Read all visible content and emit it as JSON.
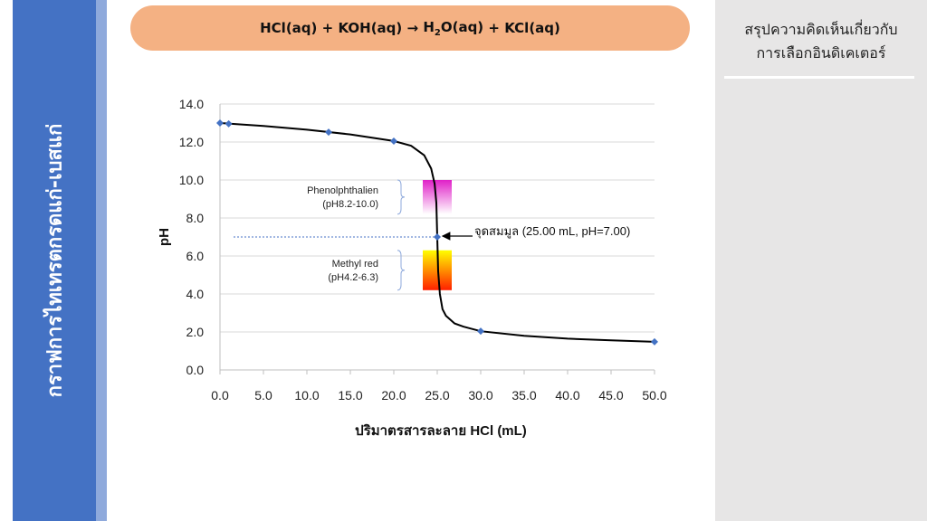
{
  "side_title": "กราฟการไทเทรตกรดแก่-เบสแก่",
  "equation": {
    "reactant1": "HCl(aq)",
    "plus1": "+",
    "reactant2": "KOH(aq)",
    "arrow": "→",
    "product1_pre": "H",
    "product1_sub": "2",
    "product1_post": "O(aq)",
    "plus2": "+",
    "product2": "KCl(aq)"
  },
  "right_panel": {
    "title_line1": "สรุปความคิดเห็นเกี่ยวกับ",
    "title_line2": "การเลือกอินดิเคเตอร์"
  },
  "chart_data": {
    "type": "line",
    "xlabel": "ปริมาตรสารละลาย HCl (mL)",
    "ylabel": "pH",
    "xlim": [
      0,
      50
    ],
    "ylim": [
      0,
      14
    ],
    "x_ticks": [
      "0.0",
      "5.0",
      "10.0",
      "15.0",
      "20.0",
      "25.0",
      "30.0",
      "35.0",
      "40.0",
      "45.0",
      "50.0"
    ],
    "y_ticks": [
      "0.0",
      "2.0",
      "4.0",
      "6.0",
      "8.0",
      "10.0",
      "12.0",
      "14.0"
    ],
    "markers": [
      {
        "x": 0,
        "y": 13.0
      },
      {
        "x": 1,
        "y": 12.96
      },
      {
        "x": 12.5,
        "y": 12.52
      },
      {
        "x": 20,
        "y": 12.05
      },
      {
        "x": 25,
        "y": 7.0
      },
      {
        "x": 30,
        "y": 2.04
      },
      {
        "x": 50,
        "y": 1.48
      }
    ],
    "curve": [
      [
        0,
        13.0
      ],
      [
        5,
        12.85
      ],
      [
        10,
        12.65
      ],
      [
        15,
        12.4
      ],
      [
        20,
        12.05
      ],
      [
        22,
        11.8
      ],
      [
        23.5,
        11.3
      ],
      [
        24.3,
        10.6
      ],
      [
        24.7,
        9.8
      ],
      [
        24.9,
        8.8
      ],
      [
        25,
        7.0
      ],
      [
        25.1,
        5.2
      ],
      [
        25.3,
        4.0
      ],
      [
        25.6,
        3.2
      ],
      [
        26,
        2.85
      ],
      [
        27,
        2.45
      ],
      [
        28,
        2.28
      ],
      [
        30,
        2.04
      ],
      [
        35,
        1.8
      ],
      [
        40,
        1.65
      ],
      [
        45,
        1.56
      ],
      [
        50,
        1.48
      ]
    ],
    "equivalence_label": "จุดสมมูล (25.00 mL, pH=7.00)",
    "equivalence_point": {
      "x": 25,
      "y": 7.0
    },
    "indicators": [
      {
        "name": "Phenolphthalien",
        "range_text": "(pH8.2-10.0)",
        "ph_low": 8.2,
        "ph_high": 10.0,
        "color_low": "#ffffff",
        "color_high": "#e020c8"
      },
      {
        "name": "Methyl red",
        "range_text": "(pH4.2-6.3)",
        "ph_low": 4.2,
        "ph_high": 6.3,
        "color_low": "#ff2000",
        "color_high": "#ffff00"
      }
    ],
    "colors": {
      "curve": "#000000",
      "marker": "#4472c4",
      "grid": "#d9d9d9",
      "guide": "#4472c4"
    },
    "grid": "horizontal"
  }
}
